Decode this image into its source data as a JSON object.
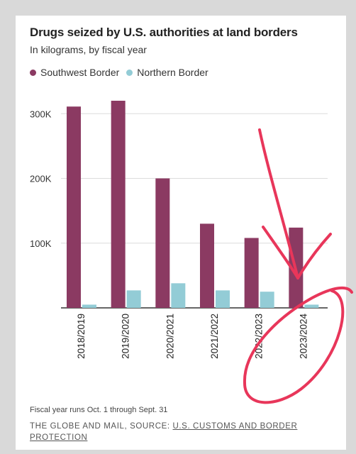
{
  "chart_data": {
    "type": "bar",
    "title": "Drugs seized by U.S. authorities at land borders",
    "subtitle": "In kilograms, by fiscal year",
    "categories": [
      "2018/2019",
      "2019/2020",
      "2020/2021",
      "2021/2022",
      "2022/2023",
      "2023/2024"
    ],
    "series": [
      {
        "name": "Southwest Border",
        "color": "#8b3a62",
        "values": [
          311000,
          320000,
          200000,
          130000,
          108000,
          124000
        ]
      },
      {
        "name": "Northern Border",
        "color": "#93ccd6",
        "values": [
          5000,
          27000,
          38000,
          27000,
          25000,
          5000
        ]
      }
    ],
    "ylim": [
      0,
      320000
    ],
    "yticks": [
      {
        "value": 100000,
        "label": "100K"
      },
      {
        "value": 200000,
        "label": "200K"
      },
      {
        "value": 300000,
        "label": "300K"
      }
    ],
    "grid": true,
    "legend_position": "top-left"
  },
  "footnote": "Fiscal year runs Oct. 1 through Sept. 31",
  "source": {
    "prefix": "THE GLOBE AND MAIL, SOURCE: ",
    "link_text": "U.S. CUSTOMS AND BORDER PROTECTION"
  },
  "annotation_color": "#e8365a"
}
